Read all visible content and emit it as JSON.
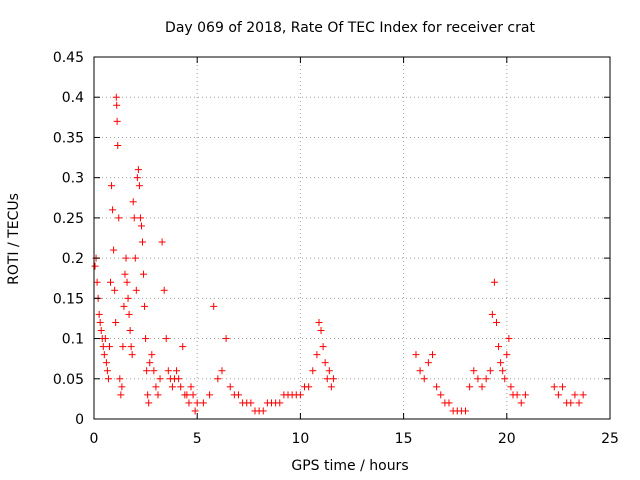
{
  "chart_data": {
    "type": "scatter",
    "title": "Day 069 of 2018, Rate Of TEC Index for receiver crat",
    "xlabel": "GPS time / hours",
    "ylabel": "ROTI / TECUs",
    "xlim": [
      0,
      25
    ],
    "ylim": [
      0,
      0.45
    ],
    "xticks": [
      0,
      5,
      10,
      15,
      20,
      25
    ],
    "xtick_labels": [
      "0",
      "5",
      "10",
      "15",
      "20",
      "25"
    ],
    "yticks": [
      0,
      0.05,
      0.1,
      0.15,
      0.2,
      0.25,
      0.3,
      0.35,
      0.4,
      0.45
    ],
    "ytick_labels": [
      "0",
      "0.05",
      "0.1",
      "0.15",
      "0.2",
      "0.25",
      "0.3",
      "0.35",
      "0.4",
      "0.45"
    ],
    "grid": true,
    "marker": "+",
    "series": [
      {
        "name": "ROTI",
        "color": "#ff0000",
        "points": [
          [
            0.05,
            0.19
          ],
          [
            0.1,
            0.2
          ],
          [
            0.15,
            0.17
          ],
          [
            0.2,
            0.15
          ],
          [
            0.25,
            0.13
          ],
          [
            0.3,
            0.12
          ],
          [
            0.35,
            0.11
          ],
          [
            0.4,
            0.1
          ],
          [
            0.45,
            0.09
          ],
          [
            0.5,
            0.08
          ],
          [
            0.55,
            0.1
          ],
          [
            0.6,
            0.07
          ],
          [
            0.65,
            0.06
          ],
          [
            0.7,
            0.05
          ],
          [
            0.75,
            0.09
          ],
          [
            0.8,
            0.17
          ],
          [
            0.85,
            0.29
          ],
          [
            0.9,
            0.26
          ],
          [
            0.95,
            0.21
          ],
          [
            1.0,
            0.16
          ],
          [
            1.05,
            0.12
          ],
          [
            1.08,
            0.4
          ],
          [
            1.1,
            0.39
          ],
          [
            1.12,
            0.37
          ],
          [
            1.15,
            0.34
          ],
          [
            1.2,
            0.25
          ],
          [
            1.25,
            0.05
          ],
          [
            1.3,
            0.03
          ],
          [
            1.35,
            0.04
          ],
          [
            1.4,
            0.09
          ],
          [
            1.45,
            0.14
          ],
          [
            1.5,
            0.18
          ],
          [
            1.55,
            0.2
          ],
          [
            1.6,
            0.17
          ],
          [
            1.65,
            0.15
          ],
          [
            1.7,
            0.13
          ],
          [
            1.75,
            0.11
          ],
          [
            1.8,
            0.09
          ],
          [
            1.85,
            0.08
          ],
          [
            1.9,
            0.27
          ],
          [
            1.95,
            0.25
          ],
          [
            2.0,
            0.2
          ],
          [
            2.05,
            0.16
          ],
          [
            2.1,
            0.3
          ],
          [
            2.15,
            0.31
          ],
          [
            2.2,
            0.29
          ],
          [
            2.25,
            0.25
          ],
          [
            2.3,
            0.24
          ],
          [
            2.35,
            0.22
          ],
          [
            2.4,
            0.18
          ],
          [
            2.45,
            0.14
          ],
          [
            2.5,
            0.1
          ],
          [
            2.55,
            0.06
          ],
          [
            2.6,
            0.03
          ],
          [
            2.65,
            0.02
          ],
          [
            2.7,
            0.07
          ],
          [
            2.8,
            0.08
          ],
          [
            2.9,
            0.06
          ],
          [
            3.0,
            0.04
          ],
          [
            3.1,
            0.03
          ],
          [
            3.2,
            0.05
          ],
          [
            3.3,
            0.22
          ],
          [
            3.4,
            0.16
          ],
          [
            3.5,
            0.1
          ],
          [
            3.6,
            0.06
          ],
          [
            3.7,
            0.05
          ],
          [
            3.8,
            0.04
          ],
          [
            3.9,
            0.05
          ],
          [
            4.0,
            0.06
          ],
          [
            4.1,
            0.05
          ],
          [
            4.2,
            0.04
          ],
          [
            4.3,
            0.09
          ],
          [
            4.4,
            0.03
          ],
          [
            4.5,
            0.03
          ],
          [
            4.6,
            0.02
          ],
          [
            4.7,
            0.04
          ],
          [
            4.8,
            0.03
          ],
          [
            4.9,
            0.01
          ],
          [
            5.0,
            0.02
          ],
          [
            5.3,
            0.02
          ],
          [
            5.6,
            0.03
          ],
          [
            5.8,
            0.14
          ],
          [
            6.0,
            0.05
          ],
          [
            6.2,
            0.06
          ],
          [
            6.4,
            0.1
          ],
          [
            6.6,
            0.04
          ],
          [
            6.8,
            0.03
          ],
          [
            7.0,
            0.03
          ],
          [
            7.2,
            0.02
          ],
          [
            7.4,
            0.02
          ],
          [
            7.6,
            0.02
          ],
          [
            7.8,
            0.01
          ],
          [
            8.0,
            0.01
          ],
          [
            8.2,
            0.01
          ],
          [
            8.4,
            0.02
          ],
          [
            8.6,
            0.02
          ],
          [
            8.8,
            0.02
          ],
          [
            9.0,
            0.02
          ],
          [
            9.2,
            0.03
          ],
          [
            9.4,
            0.03
          ],
          [
            9.6,
            0.03
          ],
          [
            9.8,
            0.03
          ],
          [
            10.0,
            0.03
          ],
          [
            10.2,
            0.04
          ],
          [
            10.4,
            0.04
          ],
          [
            10.6,
            0.06
          ],
          [
            10.8,
            0.08
          ],
          [
            10.9,
            0.12
          ],
          [
            11.0,
            0.11
          ],
          [
            11.1,
            0.09
          ],
          [
            11.2,
            0.07
          ],
          [
            11.3,
            0.05
          ],
          [
            11.4,
            0.06
          ],
          [
            11.5,
            0.04
          ],
          [
            11.6,
            0.05
          ],
          [
            15.6,
            0.08
          ],
          [
            15.8,
            0.06
          ],
          [
            16.0,
            0.05
          ],
          [
            16.2,
            0.07
          ],
          [
            16.4,
            0.08
          ],
          [
            16.6,
            0.04
          ],
          [
            16.8,
            0.03
          ],
          [
            17.0,
            0.02
          ],
          [
            17.2,
            0.02
          ],
          [
            17.4,
            0.01
          ],
          [
            17.6,
            0.01
          ],
          [
            17.8,
            0.01
          ],
          [
            18.0,
            0.01
          ],
          [
            18.2,
            0.04
          ],
          [
            18.4,
            0.06
          ],
          [
            18.6,
            0.05
          ],
          [
            18.8,
            0.04
          ],
          [
            19.0,
            0.05
          ],
          [
            19.2,
            0.06
          ],
          [
            19.3,
            0.13
          ],
          [
            19.4,
            0.17
          ],
          [
            19.5,
            0.12
          ],
          [
            19.6,
            0.09
          ],
          [
            19.7,
            0.07
          ],
          [
            19.8,
            0.06
          ],
          [
            19.9,
            0.05
          ],
          [
            20.0,
            0.08
          ],
          [
            20.1,
            0.1
          ],
          [
            20.2,
            0.04
          ],
          [
            20.3,
            0.03
          ],
          [
            20.5,
            0.03
          ],
          [
            20.7,
            0.02
          ],
          [
            20.9,
            0.03
          ],
          [
            22.3,
            0.04
          ],
          [
            22.5,
            0.03
          ],
          [
            22.7,
            0.04
          ],
          [
            22.9,
            0.02
          ],
          [
            23.1,
            0.02
          ],
          [
            23.3,
            0.03
          ],
          [
            23.5,
            0.02
          ],
          [
            23.7,
            0.03
          ]
        ]
      }
    ]
  }
}
